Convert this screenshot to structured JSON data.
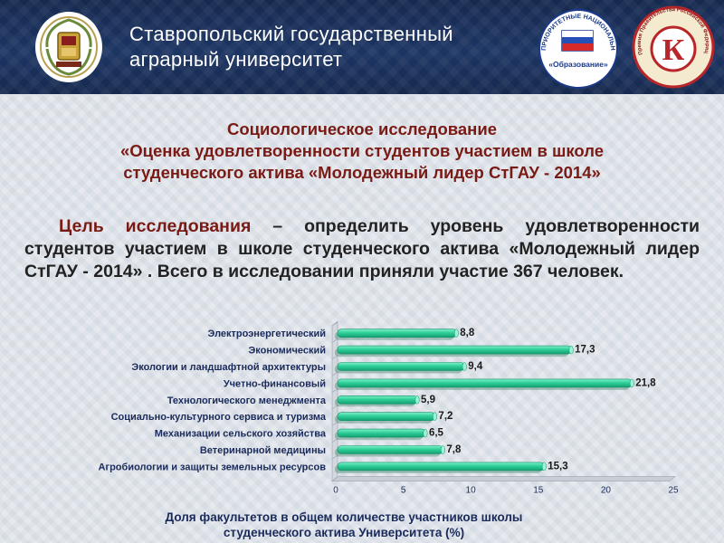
{
  "header": {
    "university_line1": "Ставропольский государственный",
    "university_line2": "аграрный университет",
    "logo_program_text": "«Образование»",
    "logo_program_ring": "ПРИОРИТЕТНЫЕ НАЦИОНАЛЬНЫЕ ПРОЕКТЫ",
    "logo_quality_ring": "Премия Правительства Российской Федерации в области качества",
    "logo_quality_letter": "К"
  },
  "title": {
    "line1": "Социологическое исследование",
    "line2": "«Оценка удовлетворенности студентов участием в школе",
    "line3": "студенческого актива «Молодежный лидер СтГАУ - 2014»"
  },
  "goal": {
    "key": "Цель исследования",
    "text": " – определить уровень удовлетворенности студентов участием в школе студенческого актива «Молодежный лидер СтГАУ - 2014» . Всего в исследовании приняли участие 367 человек."
  },
  "chart_data": {
    "type": "bar",
    "orientation": "horizontal",
    "categories": [
      "Электроэнергетический",
      "Экономический",
      "Экологии и ландшафтной архитектуры",
      "Учетно-финансовый",
      "Технологического менеджмента",
      "Социально-культурного сервиса и туризма",
      "Механизации сельского хозяйства",
      "Ветеринарной медицины",
      "Агробиологии и защиты земельных ресурсов"
    ],
    "values": [
      8.8,
      17.3,
      9.4,
      21.8,
      5.9,
      7.2,
      6.5,
      7.8,
      15.3
    ],
    "value_labels": [
      "8,8",
      "17,3",
      "9,4",
      "21,8",
      "5,9",
      "7,2",
      "6,5",
      "7,8",
      "15,3"
    ],
    "xlim": [
      0,
      25
    ],
    "xticks": [
      "0",
      "5",
      "10",
      "15",
      "20",
      "25"
    ],
    "xtick_values": [
      0,
      5,
      10,
      15,
      20,
      25
    ],
    "grid": false,
    "bar_color": "#2fcf9a",
    "caption_line1": "Доля факультетов в общем количестве участников школы",
    "caption_line2": "студенческого актива Университета (%)"
  },
  "colors": {
    "header_bg": "#1c3563",
    "title": "#7a1a14",
    "caption": "#1a2a5a",
    "bar": "#2fcf9a"
  }
}
